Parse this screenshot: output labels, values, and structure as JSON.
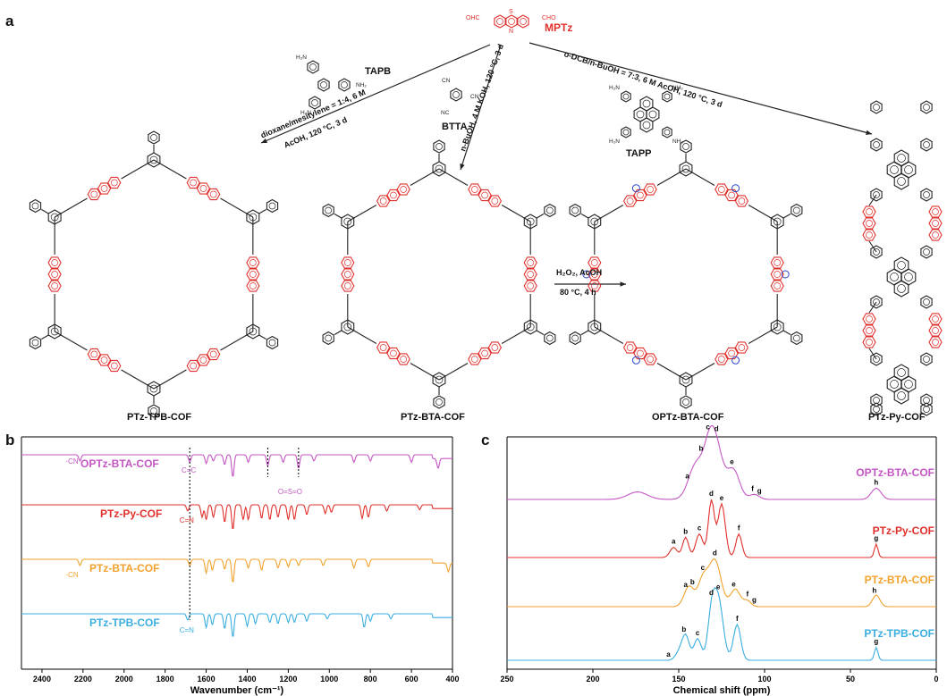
{
  "panels": {
    "a": "a",
    "b": "b",
    "c": "c"
  },
  "scheme": {
    "monomer": {
      "name": "MPTz",
      "substituents": [
        "OHC",
        "CHO"
      ],
      "atoms": [
        "S",
        "N"
      ]
    },
    "reagents": {
      "tapb": "TAPB",
      "btta": "BTTA",
      "tapp": "TAPP",
      "amine": "NH₂",
      "amine_left": "H₂N",
      "nitrile": "CN",
      "nitrile_left": "NC"
    },
    "conditions": {
      "tpb_line1": "dioxane/mesitylene = 1:4, 6 M",
      "tpb_line2": "AcOH, 120 °C, 3 d",
      "bta": "n-BuOH, 4 M KOH, 120 °C, 3 d",
      "py": "o-DCB/n-BuOH = 7:3, 6 M AcOH, 120 °C, 3 d",
      "ox_line1": "H₂O₂, AcOH",
      "ox_line2": "80 °C, 4 h"
    },
    "products": [
      "PTz-TPB-COF",
      "PTz-BTA-COF",
      "OPTz-BTA-COF",
      "PTz-Py-COF"
    ]
  },
  "chart_data": [
    {
      "type": "line",
      "panel": "b",
      "xlabel": "Wavenumber (cm⁻¹)",
      "xlim": [
        2500,
        400
      ],
      "xticks": [
        2400,
        2200,
        2000,
        1800,
        1600,
        1400,
        1200,
        1000,
        800,
        600,
        400
      ],
      "yaxis": "none",
      "grid": false,
      "annotations": [
        "-CN",
        "-CN",
        "C=C",
        "C=N",
        "C=N",
        "O=S=O"
      ],
      "dotted_markers": [
        1680,
        1300,
        1150
      ],
      "series": [
        {
          "name": "OPTz-BTA-COF",
          "color": "#c456c4",
          "peaks": [
            [
              2215,
              0.25
            ],
            [
              1680,
              0.3
            ],
            [
              1600,
              0.35
            ],
            [
              1565,
              0.25
            ],
            [
              1510,
              0.4
            ],
            [
              1470,
              0.9
            ],
            [
              1395,
              0.3
            ],
            [
              1300,
              0.45
            ],
            [
              1225,
              0.3
            ],
            [
              1150,
              0.55
            ],
            [
              1075,
              0.25
            ],
            [
              880,
              0.3
            ],
            [
              800,
              0.25
            ],
            [
              600,
              0.3
            ],
            [
              470,
              0.4
            ]
          ]
        },
        {
          "name": "PTz-Py-COF",
          "color": "#e0302c",
          "peaks": [
            [
              1690,
              0.25
            ],
            [
              1620,
              0.5
            ],
            [
              1600,
              0.6
            ],
            [
              1565,
              0.5
            ],
            [
              1510,
              0.7
            ],
            [
              1470,
              1.0
            ],
            [
              1420,
              0.6
            ],
            [
              1395,
              0.6
            ],
            [
              1330,
              0.55
            ],
            [
              1290,
              0.6
            ],
            [
              1250,
              0.5
            ],
            [
              1200,
              0.6
            ],
            [
              1170,
              0.6
            ],
            [
              1110,
              0.4
            ],
            [
              1020,
              0.35
            ],
            [
              990,
              0.3
            ],
            [
              840,
              0.55
            ],
            [
              810,
              0.5
            ],
            [
              720,
              0.25
            ],
            [
              560,
              0.2
            ]
          ]
        },
        {
          "name": "PTz-BTA-COF",
          "color": "#f2a22c",
          "peaks": [
            [
              2215,
              0.25
            ],
            [
              1680,
              0.25
            ],
            [
              1600,
              0.55
            ],
            [
              1570,
              0.45
            ],
            [
              1510,
              0.4
            ],
            [
              1470,
              0.95
            ],
            [
              1395,
              0.35
            ],
            [
              1330,
              0.45
            ],
            [
              1250,
              0.35
            ],
            [
              1200,
              0.3
            ],
            [
              1150,
              0.25
            ],
            [
              1030,
              0.25
            ],
            [
              880,
              0.35
            ],
            [
              810,
              0.3
            ],
            [
              420,
              0.35
            ]
          ]
        },
        {
          "name": "PTz-TPB-COF",
          "color": "#3aaee0",
          "peaks": [
            [
              1690,
              0.25
            ],
            [
              1600,
              0.55
            ],
            [
              1570,
              0.45
            ],
            [
              1510,
              0.6
            ],
            [
              1470,
              0.95
            ],
            [
              1400,
              0.5
            ],
            [
              1360,
              0.4
            ],
            [
              1290,
              0.35
            ],
            [
              1250,
              0.4
            ],
            [
              1200,
              0.35
            ],
            [
              1170,
              0.35
            ],
            [
              1110,
              0.3
            ],
            [
              1010,
              0.2
            ],
            [
              830,
              0.55
            ],
            [
              800,
              0.3
            ],
            [
              700,
              0.2
            ]
          ]
        }
      ]
    },
    {
      "type": "line",
      "panel": "c",
      "xlabel": "Chemical shift (ppm)",
      "xlim": [
        250,
        0
      ],
      "xticks": [
        250,
        200,
        150,
        100,
        50,
        0
      ],
      "yaxis": "none",
      "grid": false,
      "series": [
        {
          "name": "OPTz-BTA-COF",
          "color": "#c456c4",
          "peaks": [
            [
              174,
              0.12,
              8
            ],
            [
              140,
              0.55,
              6
            ],
            [
              132,
              0.6,
              5
            ],
            [
              128,
              0.7,
              6
            ],
            [
              118,
              0.45,
              5
            ],
            [
              106,
              0.08,
              4
            ],
            [
              35,
              0.18,
              4
            ]
          ],
          "labels": [
            [
              "a",
              145
            ],
            [
              "b",
              137
            ],
            [
              "c",
              133
            ],
            [
              "d",
              128
            ],
            [
              "e",
              119
            ],
            [
              "f",
              107
            ],
            [
              "g",
              103
            ],
            [
              "h",
              35
            ]
          ]
        },
        {
          "name": "PTz-Py-COF",
          "color": "#e0302c",
          "peaks": [
            [
              153,
              0.15,
              3
            ],
            [
              146,
              0.3,
              2.5
            ],
            [
              138,
              0.35,
              3
            ],
            [
              131,
              0.85,
              2.5
            ],
            [
              125,
              0.8,
              3
            ],
            [
              115,
              0.35,
              2.5
            ],
            [
              35,
              0.2,
              1.5
            ]
          ],
          "labels": [
            [
              "a",
              153
            ],
            [
              "b",
              146
            ],
            [
              "c",
              138
            ],
            [
              "d",
              131
            ],
            [
              "e",
              125
            ],
            [
              "f",
              115
            ],
            [
              "g",
              35
            ]
          ]
        },
        {
          "name": "PTz-BTA-COF",
          "color": "#f2a22c",
          "peaks": [
            [
              144,
              0.35,
              4
            ],
            [
              136,
              0.45,
              4
            ],
            [
              129,
              0.8,
              5
            ],
            [
              117,
              0.3,
              4
            ],
            [
              110,
              0.1,
              3
            ],
            [
              35,
              0.2,
              3
            ]
          ],
          "labels": [
            [
              "a",
              146
            ],
            [
              "b",
              142
            ],
            [
              "c",
              136
            ],
            [
              "d",
              129
            ],
            [
              "e",
              118
            ],
            [
              "f",
              110
            ],
            [
              "g",
              106
            ],
            [
              "h",
              36
            ]
          ]
        },
        {
          "name": "PTz-TPB-COF",
          "color": "#3aaee0",
          "peaks": [
            [
              150,
              0.1,
              3
            ],
            [
              146,
              0.35,
              3
            ],
            [
              139,
              0.3,
              3
            ],
            [
              131,
              0.55,
              3
            ],
            [
              127,
              0.85,
              4
            ],
            [
              116,
              0.5,
              3
            ],
            [
              35,
              0.18,
              1.5
            ]
          ],
          "labels": [
            [
              "a",
              156
            ],
            [
              "b",
              147
            ],
            [
              "c",
              139
            ],
            [
              "d",
              131
            ],
            [
              "e",
              127
            ],
            [
              "f",
              116
            ],
            [
              "g",
              35
            ]
          ]
        }
      ]
    }
  ]
}
